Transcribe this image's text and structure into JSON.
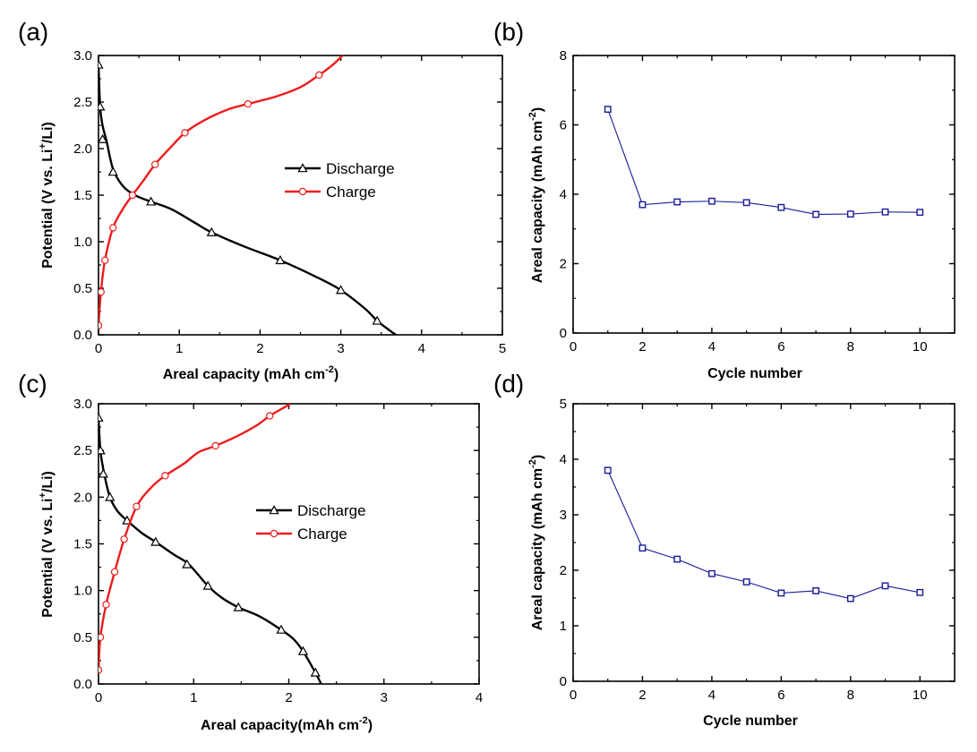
{
  "chart_data": [
    {
      "panel": "(a)",
      "type": "line",
      "xlabel": "Areal capacity (mAh cm",
      "xlabel_sup": "-2",
      "xlabel_tail": ")",
      "ylabel": "Potential (V vs. Li",
      "ylabel_sup": "+",
      "ylabel_tail": "/Li)",
      "xlim": [
        0,
        5
      ],
      "ylim": [
        0,
        3.0
      ],
      "xticks": [
        "0",
        "1",
        "2",
        "3",
        "4",
        "5"
      ],
      "yticks": [
        "0.0",
        "0.5",
        "1.0",
        "1.5",
        "2.0",
        "2.5",
        "3.0"
      ],
      "legend": "center-right",
      "series": [
        {
          "name": "Discharge",
          "color": "#000000",
          "marker": "triangle",
          "x": [
            0.0,
            0.02,
            0.05,
            0.1,
            0.18,
            0.3,
            0.45,
            0.65,
            0.9,
            1.2,
            1.4,
            1.8,
            2.25,
            2.7,
            3.0,
            3.3,
            3.45,
            3.6,
            3.68
          ],
          "y": [
            2.9,
            2.45,
            2.25,
            2.08,
            1.78,
            1.6,
            1.5,
            1.43,
            1.35,
            1.2,
            1.1,
            0.95,
            0.8,
            0.62,
            0.48,
            0.28,
            0.15,
            0.05,
            0.0
          ],
          "markers_x": [
            0.0,
            0.02,
            0.05,
            0.18,
            0.65,
            1.4,
            2.25,
            3.0,
            3.45
          ],
          "markers_y": [
            2.9,
            2.45,
            2.1,
            1.75,
            1.43,
            1.1,
            0.8,
            0.48,
            0.15
          ]
        },
        {
          "name": "Charge",
          "color": "#ee1c1c",
          "marker": "circle",
          "x": [
            0.0,
            0.03,
            0.08,
            0.18,
            0.3,
            0.42,
            0.55,
            0.7,
            0.9,
            1.07,
            1.3,
            1.6,
            1.85,
            2.2,
            2.5,
            2.73,
            2.9,
            3.02
          ],
          "y": [
            0.1,
            0.46,
            0.8,
            1.15,
            1.35,
            1.5,
            1.65,
            1.83,
            2.02,
            2.17,
            2.3,
            2.42,
            2.48,
            2.56,
            2.66,
            2.79,
            2.9,
            3.0
          ],
          "markers_x": [
            0.0,
            0.03,
            0.08,
            0.18,
            0.42,
            0.7,
            1.07,
            1.85,
            2.73
          ],
          "markers_y": [
            0.1,
            0.46,
            0.8,
            1.15,
            1.5,
            1.83,
            2.17,
            2.48,
            2.79
          ]
        }
      ]
    },
    {
      "panel": "(b)",
      "type": "line",
      "xlabel": "Cycle number",
      "xlabel_sup": "",
      "xlabel_tail": "",
      "ylabel": "Areal capacity (mAh cm",
      "ylabel_sup": "-2",
      "ylabel_tail": ")",
      "xlim": [
        0,
        11
      ],
      "ylim": [
        0,
        8
      ],
      "xticks": [
        "0",
        "2",
        "4",
        "6",
        "8",
        "10"
      ],
      "yticks": [
        "0",
        "2",
        "4",
        "6",
        "8"
      ],
      "legend": "none",
      "series": [
        {
          "name": "Areal capacity",
          "color": "#1a1a99",
          "marker": "square",
          "x": [
            1,
            2,
            3,
            4,
            5,
            6,
            7,
            8,
            9,
            10
          ],
          "y": [
            6.45,
            3.7,
            3.78,
            3.8,
            3.76,
            3.62,
            3.42,
            3.43,
            3.49,
            3.48
          ]
        }
      ]
    },
    {
      "panel": "(c)",
      "type": "line",
      "xlabel": "Areal capacity(mAh cm",
      "xlabel_sup": "-2",
      "xlabel_tail": ")",
      "ylabel": "Potential (V vs. Li",
      "ylabel_sup": "+",
      "ylabel_tail": "/Li)",
      "xlim": [
        0,
        4
      ],
      "ylim": [
        0,
        3.0
      ],
      "xticks": [
        "0",
        "1",
        "2",
        "3",
        "4"
      ],
      "yticks": [
        "0.0",
        "0.5",
        "1.0",
        "1.5",
        "2.0",
        "2.5",
        "3.0"
      ],
      "legend": "center-right",
      "series": [
        {
          "name": "Discharge",
          "color": "#000000",
          "marker": "triangle",
          "x": [
            0.0,
            0.02,
            0.06,
            0.12,
            0.2,
            0.3,
            0.45,
            0.6,
            0.8,
            0.95,
            1.15,
            1.3,
            1.47,
            1.7,
            1.92,
            2.05,
            2.15,
            2.28,
            2.34
          ],
          "y": [
            2.85,
            2.5,
            2.25,
            2.0,
            1.85,
            1.75,
            1.62,
            1.52,
            1.38,
            1.28,
            1.05,
            0.92,
            0.82,
            0.72,
            0.58,
            0.48,
            0.35,
            0.12,
            0.0
          ],
          "markers_x": [
            0.0,
            0.02,
            0.05,
            0.12,
            0.3,
            0.6,
            0.93,
            1.15,
            1.47,
            1.92,
            2.15,
            2.28
          ],
          "markers_y": [
            2.85,
            2.5,
            2.25,
            2.0,
            1.75,
            1.52,
            1.28,
            1.05,
            0.82,
            0.58,
            0.35,
            0.12
          ]
        },
        {
          "name": "Charge",
          "color": "#ee1c1c",
          "marker": "circle",
          "x": [
            0.0,
            0.02,
            0.08,
            0.17,
            0.27,
            0.4,
            0.55,
            0.7,
            0.9,
            1.05,
            1.23,
            1.45,
            1.65,
            1.8,
            1.95,
            2.02
          ],
          "y": [
            0.15,
            0.5,
            0.85,
            1.2,
            1.55,
            1.9,
            2.1,
            2.23,
            2.36,
            2.48,
            2.55,
            2.65,
            2.76,
            2.87,
            2.96,
            3.0
          ],
          "markers_x": [
            0.0,
            0.02,
            0.08,
            0.17,
            0.27,
            0.4,
            0.7,
            1.23,
            1.8
          ],
          "markers_y": [
            0.15,
            0.5,
            0.85,
            1.2,
            1.55,
            1.9,
            2.23,
            2.55,
            2.87
          ]
        }
      ]
    },
    {
      "panel": "(d)",
      "type": "line",
      "xlabel": "Cycle number",
      "xlabel_sup": "",
      "xlabel_tail": "",
      "ylabel": "Areal capacity (mAh cm",
      "ylabel_sup": "-2",
      "ylabel_tail": ")",
      "xlim": [
        0,
        11
      ],
      "ylim": [
        0,
        5
      ],
      "xticks": [
        "0",
        "2",
        "4",
        "6",
        "8",
        "10"
      ],
      "yticks": [
        "0",
        "1",
        "2",
        "3",
        "4",
        "5"
      ],
      "legend": "none",
      "series": [
        {
          "name": "Areal capacity",
          "color": "#1a1a99",
          "marker": "square",
          "x": [
            1,
            2,
            3,
            4,
            5,
            6,
            7,
            8,
            9,
            10
          ],
          "y": [
            3.8,
            2.4,
            2.2,
            1.94,
            1.79,
            1.59,
            1.63,
            1.49,
            1.72,
            1.6
          ]
        }
      ]
    }
  ]
}
